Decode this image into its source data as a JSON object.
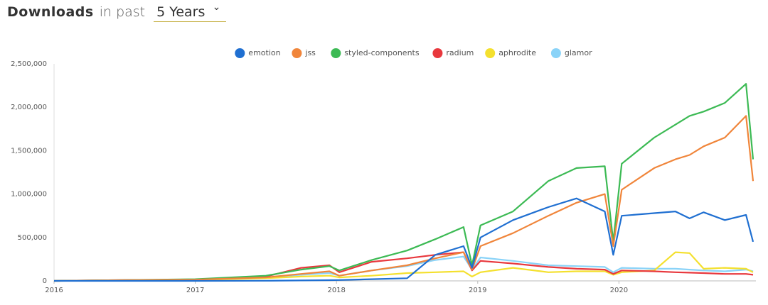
{
  "header": {
    "title": "Downloads",
    "prefix": "in past",
    "period": "5 Years"
  },
  "chart_data": {
    "type": "line",
    "x": [
      2016.0,
      2016.5,
      2017.0,
      2017.5,
      2017.75,
      2017.95,
      2018.02,
      2018.25,
      2018.5,
      2018.7,
      2018.9,
      2018.96,
      2019.02,
      2019.25,
      2019.5,
      2019.7,
      2019.9,
      2019.96,
      2020.02,
      2020.25,
      2020.4,
      2020.5,
      2020.6,
      2020.75,
      2020.9,
      2020.95
    ],
    "series": [
      {
        "name": "emotion",
        "color": "#1f6fd1",
        "values": [
          0,
          0,
          0,
          2000,
          5000,
          8000,
          10000,
          20000,
          30000,
          300000,
          400000,
          150000,
          500000,
          700000,
          850000,
          950000,
          800000,
          300000,
          750000,
          780000,
          800000,
          720000,
          790000,
          700000,
          760000,
          450000
        ]
      },
      {
        "name": "jss",
        "color": "#f0853a",
        "values": [
          0,
          8000,
          15000,
          40000,
          80000,
          110000,
          60000,
          120000,
          180000,
          260000,
          330000,
          130000,
          400000,
          550000,
          750000,
          900000,
          1000000,
          400000,
          1050000,
          1300000,
          1400000,
          1450000,
          1550000,
          1650000,
          1900000,
          1150000
        ]
      },
      {
        "name": "styled-components",
        "color": "#3cba54",
        "values": [
          0,
          10000,
          20000,
          60000,
          130000,
          170000,
          120000,
          240000,
          350000,
          480000,
          620000,
          180000,
          640000,
          800000,
          1150000,
          1300000,
          1320000,
          450000,
          1350000,
          1650000,
          1800000,
          1900000,
          1950000,
          2050000,
          2270000,
          1400000
        ]
      },
      {
        "name": "radium",
        "color": "#e8383d",
        "values": [
          0,
          10000,
          15000,
          50000,
          150000,
          180000,
          100000,
          220000,
          260000,
          300000,
          330000,
          120000,
          230000,
          200000,
          160000,
          140000,
          130000,
          80000,
          120000,
          110000,
          100000,
          95000,
          90000,
          80000,
          80000,
          70000
        ]
      },
      {
        "name": "aphrodite",
        "color": "#f4e02e",
        "values": [
          0,
          5000,
          10000,
          30000,
          50000,
          60000,
          40000,
          60000,
          90000,
          100000,
          110000,
          50000,
          100000,
          150000,
          100000,
          110000,
          110000,
          70000,
          100000,
          120000,
          330000,
          320000,
          140000,
          150000,
          140000,
          100000
        ]
      },
      {
        "name": "glamor",
        "color": "#8ad3f8",
        "values": [
          0,
          5000,
          15000,
          40000,
          70000,
          90000,
          60000,
          120000,
          170000,
          240000,
          280000,
          130000,
          270000,
          230000,
          180000,
          170000,
          160000,
          100000,
          150000,
          140000,
          140000,
          130000,
          120000,
          110000,
          130000,
          110000
        ]
      }
    ],
    "xlim": [
      2016.0,
      2020.97
    ],
    "xticks": [
      2016,
      2017,
      2018,
      2019,
      2020
    ],
    "ylim": [
      0,
      2500000
    ],
    "yticks": [
      0,
      {
        "value": 500000,
        "label": "500,000"
      },
      {
        "value": 1000000,
        "label": "1,000,000"
      },
      {
        "value": 1500000,
        "label": "1,500,000"
      },
      {
        "value": 2000000,
        "label": "2,000,000"
      },
      {
        "value": 2500000,
        "label": "2,500,000"
      }
    ],
    "grid": false
  }
}
